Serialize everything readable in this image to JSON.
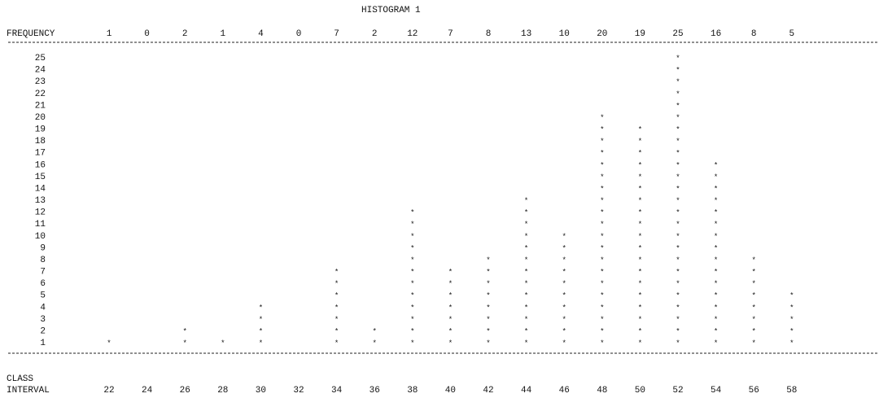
{
  "chart_data": {
    "type": "bar",
    "title": "HISTOGRAM 1",
    "frequency_label": "FREQUENCY",
    "xlabel": [
      "CLASS",
      "INTERVAL"
    ],
    "categories": [
      "22",
      "24",
      "26",
      "28",
      "30",
      "32",
      "34",
      "36",
      "38",
      "40",
      "42",
      "44",
      "46",
      "48",
      "50",
      "52",
      "54",
      "56",
      "58"
    ],
    "values": [
      1,
      0,
      2,
      1,
      4,
      0,
      7,
      2,
      12,
      7,
      8,
      13,
      10,
      20,
      19,
      25,
      16,
      8,
      5
    ],
    "y_ticks": [
      25,
      24,
      23,
      22,
      21,
      20,
      19,
      18,
      17,
      16,
      15,
      14,
      13,
      12,
      11,
      10,
      9,
      8,
      7,
      6,
      5,
      4,
      3,
      2,
      1
    ],
    "ylim": [
      1,
      25
    ],
    "mark": "*"
  }
}
